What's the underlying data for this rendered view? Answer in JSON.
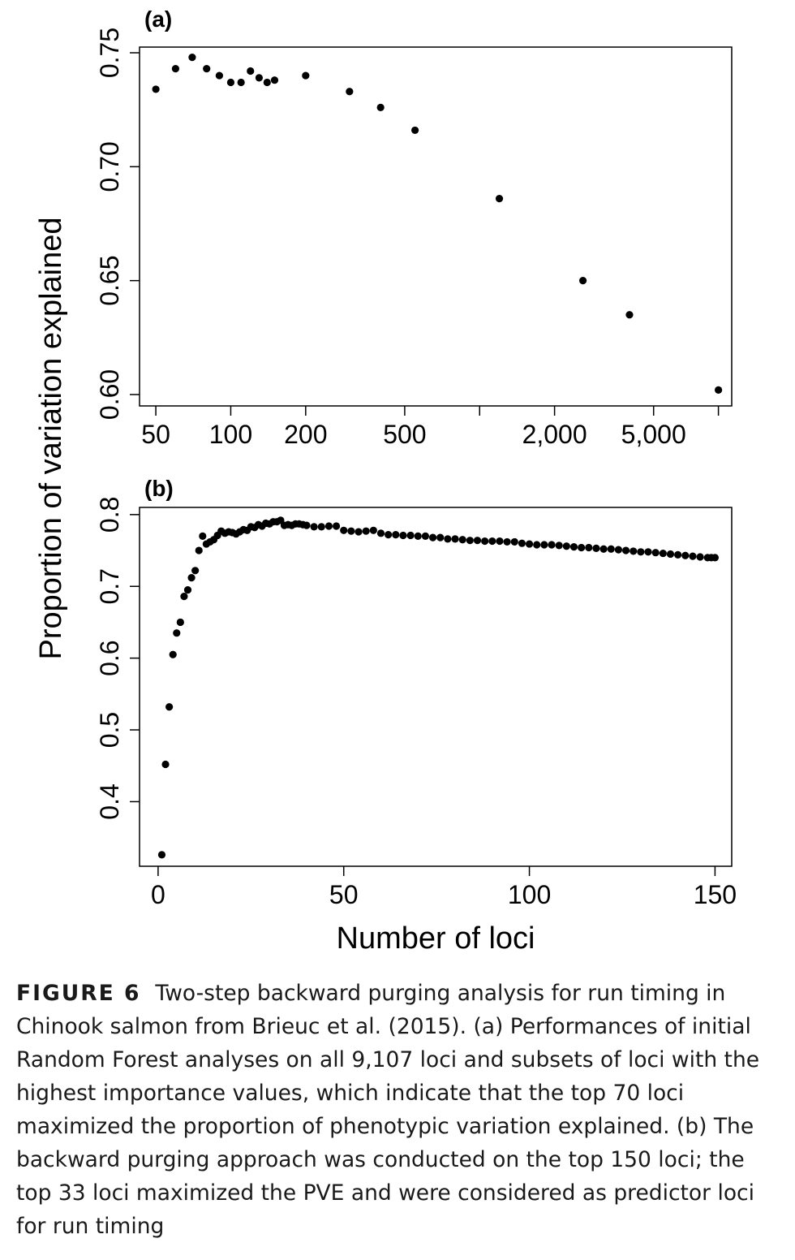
{
  "chart_data": [
    {
      "type": "scatter",
      "panel_label": "(a)",
      "x_scale": "log",
      "x_ticks": [
        50,
        100,
        200,
        500,
        1000,
        2000,
        5000,
        9107
      ],
      "x_tick_labels": [
        "50",
        "100",
        "200",
        "500",
        "",
        "2,000",
        "5,000",
        ""
      ],
      "y_ticks": [
        0.6,
        0.65,
        0.7,
        0.75
      ],
      "y_tick_labels": [
        "0.60",
        "0.65",
        "0.70",
        "0.75"
      ],
      "xlim": [
        43,
        10300
      ],
      "ylim": [
        0.595,
        0.7525
      ],
      "points": [
        [
          50,
          0.734
        ],
        [
          60,
          0.743
        ],
        [
          70,
          0.748
        ],
        [
          80,
          0.743
        ],
        [
          90,
          0.74
        ],
        [
          100,
          0.737
        ],
        [
          110,
          0.737
        ],
        [
          120,
          0.742
        ],
        [
          130,
          0.739
        ],
        [
          140,
          0.737
        ],
        [
          150,
          0.738
        ],
        [
          200,
          0.74
        ],
        [
          300,
          0.733
        ],
        [
          400,
          0.726
        ],
        [
          550,
          0.716
        ],
        [
          1200,
          0.686
        ],
        [
          2600,
          0.65
        ],
        [
          4000,
          0.635
        ],
        [
          9107,
          0.602
        ]
      ]
    },
    {
      "type": "scatter",
      "panel_label": "(b)",
      "x_ticks": [
        0,
        50,
        100,
        150
      ],
      "x_tick_labels": [
        "0",
        "50",
        "100",
        "150"
      ],
      "y_ticks": [
        0.4,
        0.5,
        0.6,
        0.7,
        0.8
      ],
      "y_tick_labels": [
        "0.4",
        "0.5",
        "0.6",
        "0.7",
        "0.8"
      ],
      "xlim": [
        -5,
        154.5
      ],
      "ylim": [
        0.31,
        0.81
      ],
      "points": [
        [
          1,
          0.326
        ],
        [
          2,
          0.452
        ],
        [
          3,
          0.532
        ],
        [
          4,
          0.605
        ],
        [
          5,
          0.635
        ],
        [
          6,
          0.65
        ],
        [
          7,
          0.686
        ],
        [
          8,
          0.695
        ],
        [
          9,
          0.712
        ],
        [
          10,
          0.722
        ],
        [
          11,
          0.75
        ],
        [
          12,
          0.77
        ],
        [
          13,
          0.759
        ],
        [
          14,
          0.762
        ],
        [
          15,
          0.765
        ],
        [
          16,
          0.771
        ],
        [
          17,
          0.777
        ],
        [
          18,
          0.774
        ],
        [
          19,
          0.776
        ],
        [
          20,
          0.775
        ],
        [
          21,
          0.773
        ],
        [
          22,
          0.776
        ],
        [
          23,
          0.779
        ],
        [
          24,
          0.778
        ],
        [
          25,
          0.783
        ],
        [
          26,
          0.782
        ],
        [
          27,
          0.786
        ],
        [
          28,
          0.784
        ],
        [
          29,
          0.788
        ],
        [
          30,
          0.787
        ],
        [
          31,
          0.79
        ],
        [
          32,
          0.79
        ],
        [
          33,
          0.792
        ],
        [
          34,
          0.785
        ],
        [
          35,
          0.786
        ],
        [
          36,
          0.785
        ],
        [
          37,
          0.787
        ],
        [
          38,
          0.787
        ],
        [
          39,
          0.786
        ],
        [
          40,
          0.785
        ],
        [
          42,
          0.783
        ],
        [
          44,
          0.783
        ],
        [
          46,
          0.784
        ],
        [
          48,
          0.784
        ],
        [
          50,
          0.778
        ],
        [
          52,
          0.777
        ],
        [
          54,
          0.776
        ],
        [
          56,
          0.777
        ],
        [
          58,
          0.778
        ],
        [
          60,
          0.774
        ],
        [
          62,
          0.772
        ],
        [
          64,
          0.772
        ],
        [
          66,
          0.771
        ],
        [
          68,
          0.771
        ],
        [
          70,
          0.77
        ],
        [
          72,
          0.77
        ],
        [
          74,
          0.768
        ],
        [
          76,
          0.768
        ],
        [
          78,
          0.766
        ],
        [
          80,
          0.766
        ],
        [
          82,
          0.765
        ],
        [
          84,
          0.764
        ],
        [
          86,
          0.764
        ],
        [
          88,
          0.763
        ],
        [
          90,
          0.763
        ],
        [
          92,
          0.763
        ],
        [
          94,
          0.762
        ],
        [
          96,
          0.762
        ],
        [
          98,
          0.76
        ],
        [
          100,
          0.759
        ],
        [
          102,
          0.758
        ],
        [
          104,
          0.758
        ],
        [
          106,
          0.758
        ],
        [
          108,
          0.757
        ],
        [
          110,
          0.756
        ],
        [
          112,
          0.755
        ],
        [
          114,
          0.754
        ],
        [
          116,
          0.754
        ],
        [
          118,
          0.753
        ],
        [
          120,
          0.752
        ],
        [
          122,
          0.752
        ],
        [
          124,
          0.751
        ],
        [
          126,
          0.75
        ],
        [
          128,
          0.749
        ],
        [
          130,
          0.748
        ],
        [
          132,
          0.748
        ],
        [
          134,
          0.747
        ],
        [
          136,
          0.746
        ],
        [
          138,
          0.745
        ],
        [
          140,
          0.744
        ],
        [
          142,
          0.743
        ],
        [
          144,
          0.742
        ],
        [
          146,
          0.741
        ],
        [
          148,
          0.74
        ],
        [
          149,
          0.74
        ],
        [
          150,
          0.74
        ]
      ]
    }
  ],
  "shared": {
    "ylabel": "Proportion of variation explained",
    "xlabel": "Number of loci",
    "point_color": "#000000"
  },
  "caption": {
    "label": "FIGURE 6",
    "text": "Two-step backward purging analysis for run timing in Chinook salmon from Brieuc et al. (2015). (a) Performances of initial Random Forest analyses on all 9,107 loci and subsets of loci with the highest importance values, which indicate that the top 70 loci maximized the proportion of phenotypic variation explained. (b) The backward purging approach was conducted on the top 150 loci; the top 33 loci maximized the PVE and were considered as predictor loci for run timing"
  }
}
